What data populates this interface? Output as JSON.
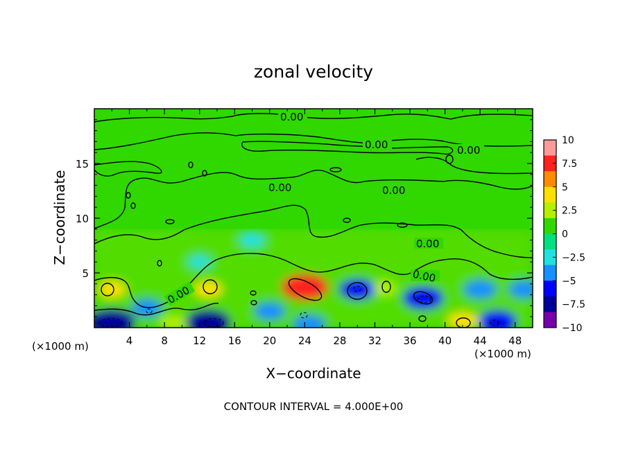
{
  "chart_data": {
    "type": "heatmap",
    "title": "zonal velocity",
    "xlabel": "X−coordinate",
    "ylabel": "Z−coordinate",
    "x_unit_left": "(×1000 m)",
    "x_unit_right": "(×1000 m)",
    "xlim": [
      0,
      50
    ],
    "ylim": [
      0,
      20
    ],
    "x_ticks": [
      4,
      8,
      12,
      16,
      20,
      24,
      28,
      32,
      36,
      40,
      44,
      48
    ],
    "x_tick_labels": [
      "4",
      "8",
      "12",
      "16",
      "20",
      "24",
      "28",
      "32",
      "36",
      "40",
      "44",
      "48"
    ],
    "y_ticks": [
      5,
      10,
      15
    ],
    "y_tick_labels": [
      "5",
      "10",
      "15"
    ],
    "colorbar": {
      "range": [
        -10,
        10
      ],
      "ticks": [
        10,
        7.5,
        5,
        2.5,
        0,
        -2.5,
        -5,
        -7.5,
        -10
      ],
      "tick_labels": [
        "10",
        "7.5",
        "5",
        "2.5",
        "0",
        "−2.5",
        "−5",
        "−7.5",
        "−10"
      ],
      "colors": [
        "#ff9a9a",
        "#ff2020",
        "#ff8c00",
        "#ffe000",
        "#b4f000",
        "#30d800",
        "#00e080",
        "#20e0e0",
        "#1890ff",
        "#0000ff",
        "#00009a",
        "#7800aa"
      ]
    },
    "contour_interval_text": "CONTOUR INTERVAL = 4.000E+00",
    "contour_labels": [
      "0.00",
      "0.00",
      "0.00",
      "0.00",
      "0.00",
      "0.00",
      "0.00",
      "0.00"
    ],
    "field_extremes": [
      {
        "x": 24,
        "z": 3.7,
        "value": 7.5
      },
      {
        "x": 2,
        "z": 3.5,
        "value": 3.5
      },
      {
        "x": 13,
        "z": 3.5,
        "value": 3.5
      },
      {
        "x": 33,
        "z": 3.6,
        "value": 3.0
      },
      {
        "x": 42,
        "z": 0.6,
        "value": 4.0
      },
      {
        "x": 9,
        "z": 0.4,
        "value": 3.0
      },
      {
        "x": 2,
        "z": 0.5,
        "value": -7.5
      },
      {
        "x": 13,
        "z": 0.5,
        "value": -7.0
      },
      {
        "x": 37.5,
        "z": 2.7,
        "value": -6.0
      },
      {
        "x": 30,
        "z": 3.5,
        "value": -5.0
      },
      {
        "x": 46,
        "z": 0.6,
        "value": -5.5
      },
      {
        "x": 24.5,
        "z": 0.3,
        "value": -4.5
      },
      {
        "x": 6,
        "z": 1.8,
        "value": -4.0
      },
      {
        "x": 20,
        "z": 1.5,
        "value": -4.0
      },
      {
        "x": 44,
        "z": 3.5,
        "value": -4.5
      },
      {
        "x": 49,
        "z": 3.5,
        "value": -4.0
      },
      {
        "x": 18,
        "z": 8,
        "value": -3.0
      },
      {
        "x": 12,
        "z": 6,
        "value": -2.5
      }
    ]
  }
}
